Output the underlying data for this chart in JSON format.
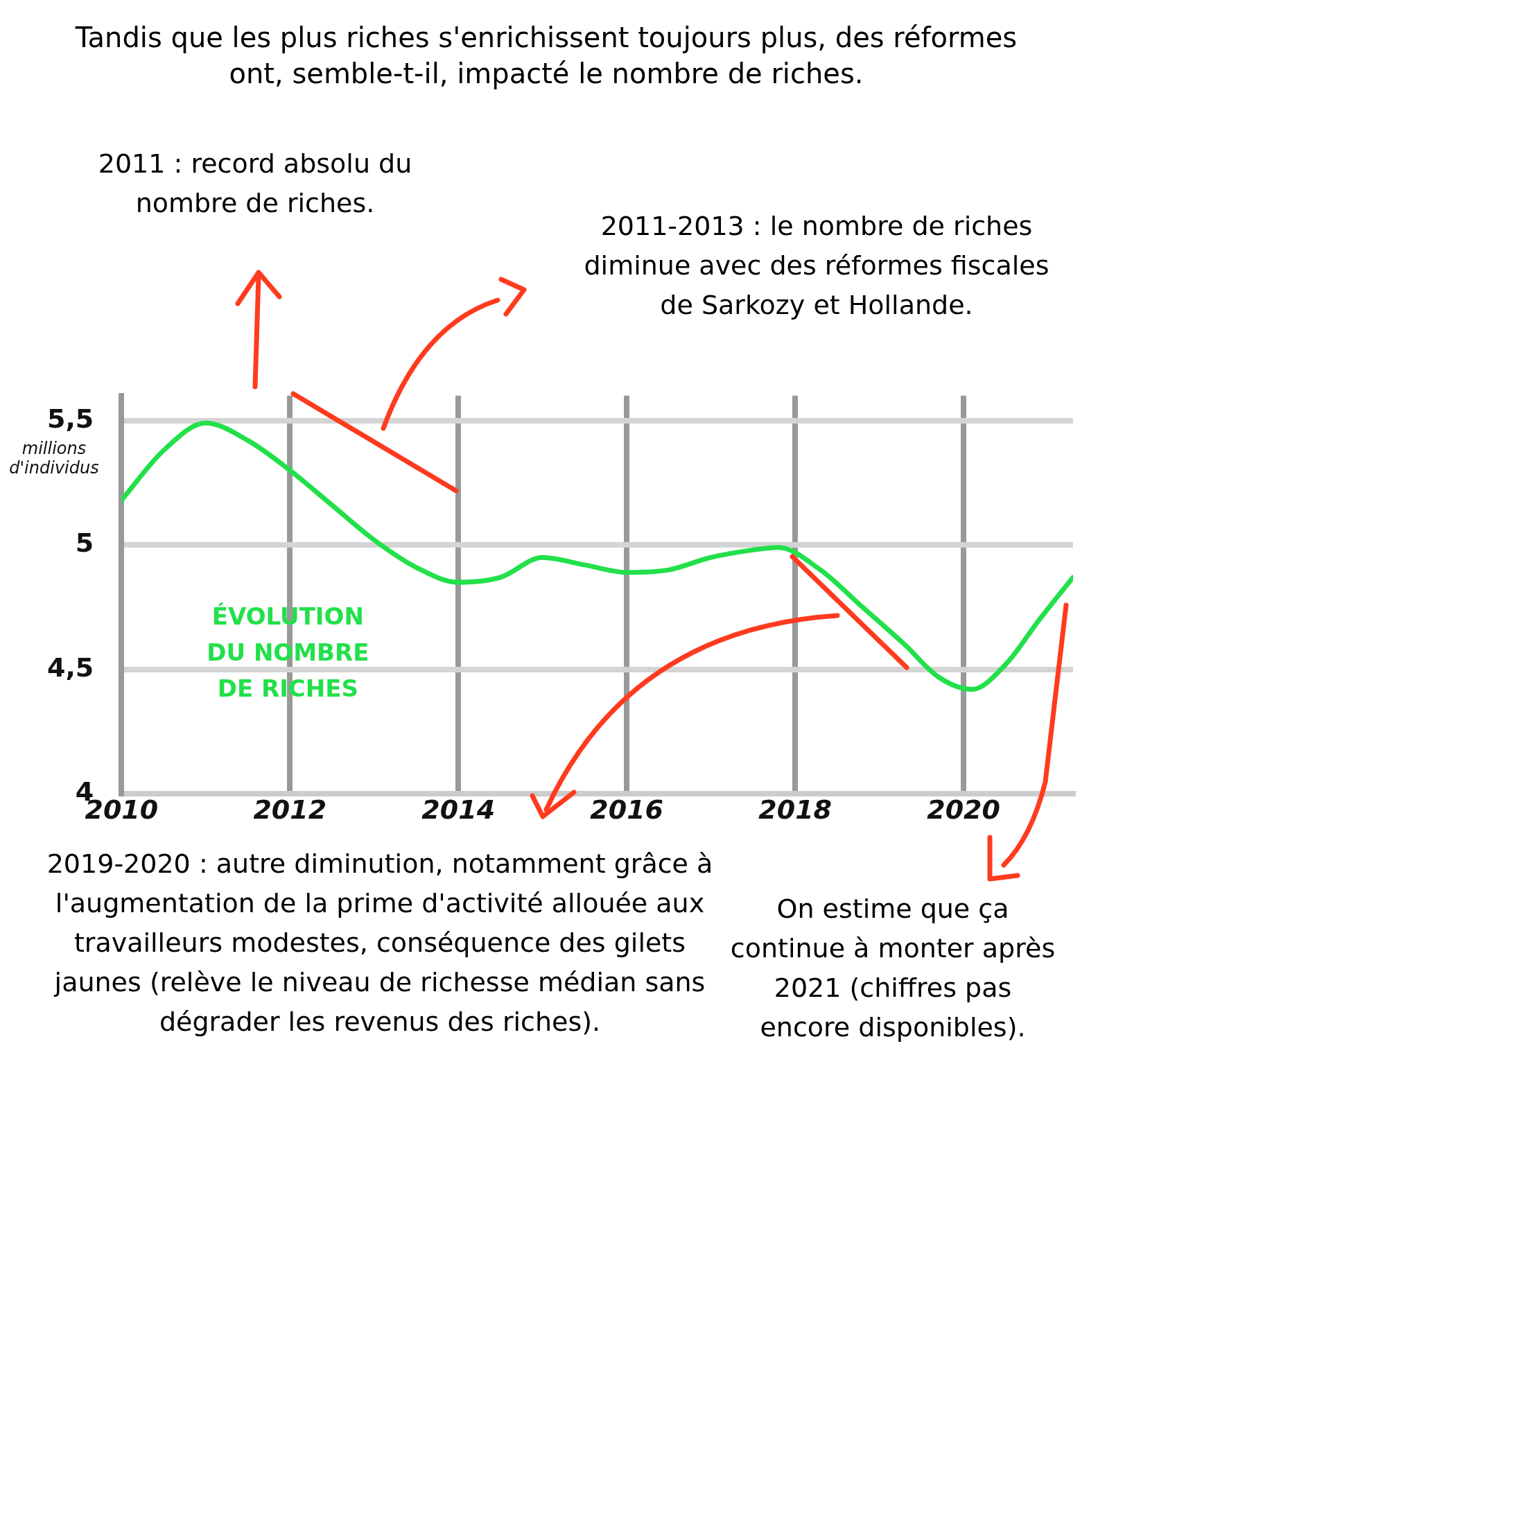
{
  "chart_data": {
    "type": "line",
    "title": "Tandis que les plus riches s'enrichissent toujours plus, des réformes ont, semble-t-il, impacté le nombre de riches.",
    "ylabel": "millions d'individus",
    "x": [
      2010,
      2010.5,
      2011,
      2011.5,
      2012,
      2012.5,
      2013,
      2013.5,
      2014,
      2014.5,
      2015,
      2015.5,
      2016,
      2016.5,
      2017,
      2017.5,
      2017.8,
      2018.3,
      2018.8,
      2019.3,
      2019.7,
      2020.1,
      2020.5,
      2020.9,
      2021.3
    ],
    "series": [
      {
        "name": "ÉVOLUTION DU NOMBRE DE RICHES",
        "color": "#22e04a",
        "values": [
          5.18,
          5.38,
          5.49,
          5.42,
          5.3,
          5.16,
          5.02,
          4.91,
          4.85,
          4.87,
          4.95,
          4.92,
          4.89,
          4.9,
          4.95,
          4.98,
          4.99,
          4.9,
          4.75,
          4.6,
          4.47,
          4.42,
          4.52,
          4.7,
          4.87
        ]
      }
    ],
    "xlim": [
      2010,
      2021.3
    ],
    "xticks": [
      2010,
      2012,
      2014,
      2016,
      2018,
      2020
    ],
    "ylim": [
      4,
      5.6
    ],
    "yticks": [
      4,
      {
        "value": 4.5,
        "label": "4,5"
      },
      5,
      {
        "value": 5.5,
        "label": "5,5"
      }
    ],
    "grid": true,
    "legend": false,
    "marker": "none",
    "line_style": "solid",
    "annotations": [
      "2011 : record absolu du nombre de riches.",
      "2011-2013 : le nombre de riches diminue avec des réformes fiscales de Sarkozy et Hollande.",
      "2019-2020 : autre diminution, notamment grâce à l'augmentation de la prime d'activité allouée aux travailleurs modestes, conséquence des gilets jaunes (relève le niveau de richesse médian sans dégrader les revenus des riches).",
      "On estime que ça continue à monter après 2021 (chiffres pas encore disponibles)."
    ]
  }
}
